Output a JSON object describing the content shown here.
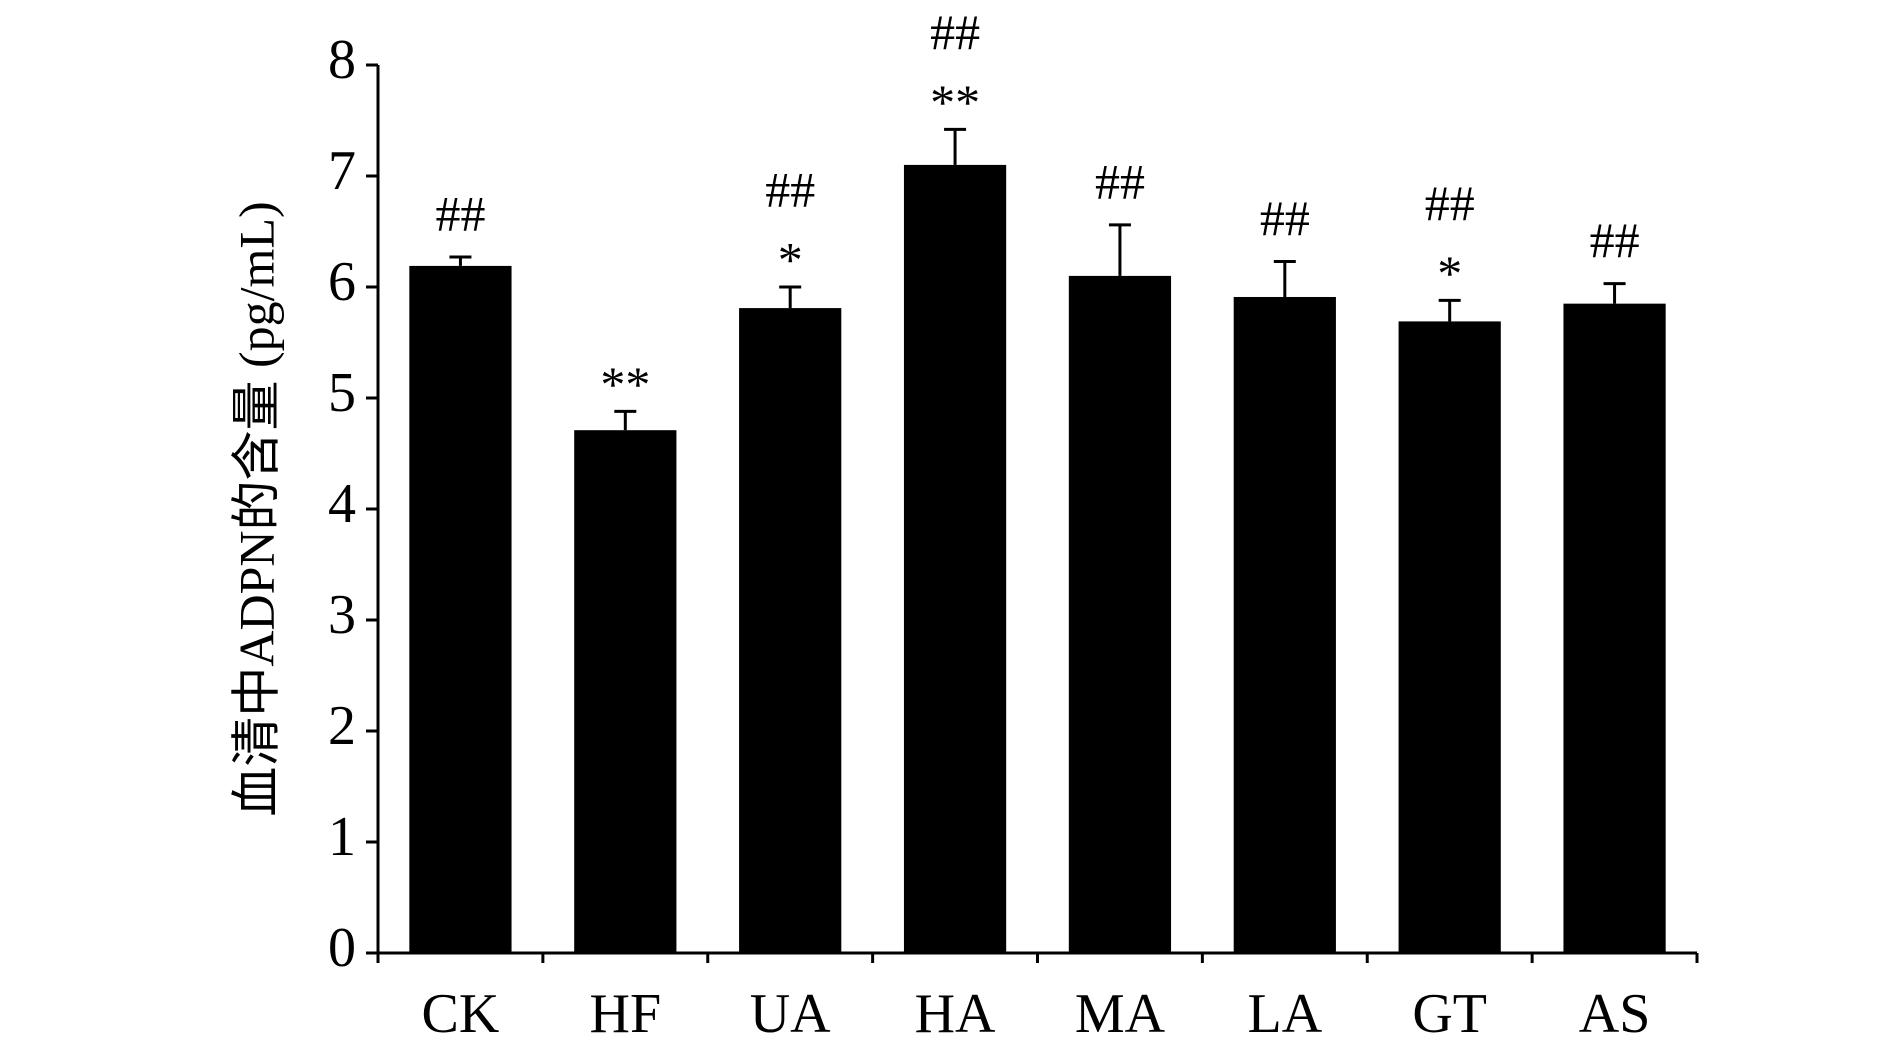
{
  "chart_data": {
    "type": "bar",
    "y_label": "血清中ADPN的含量 (pg/mL)",
    "categories": [
      "CK",
      "HF",
      "UA",
      "HA",
      "MA",
      "LA",
      "GT",
      "AS"
    ],
    "values": [
      6.19,
      4.71,
      5.81,
      7.1,
      6.1,
      5.91,
      5.69,
      5.85
    ],
    "errors": [
      0.08,
      0.17,
      0.19,
      0.32,
      0.46,
      0.32,
      0.19,
      0.18
    ],
    "annotations": [
      [
        "##"
      ],
      [
        "**"
      ],
      [
        "##",
        "*"
      ],
      [
        "##",
        "**"
      ],
      [
        "##"
      ],
      [
        "##"
      ],
      [
        "##",
        "*"
      ],
      [
        "##"
      ]
    ],
    "color": "#000000",
    "ylim": [
      0,
      8
    ],
    "yticks": [
      0,
      1,
      2,
      3,
      4,
      5,
      6,
      7,
      8
    ],
    "grid": false
  }
}
